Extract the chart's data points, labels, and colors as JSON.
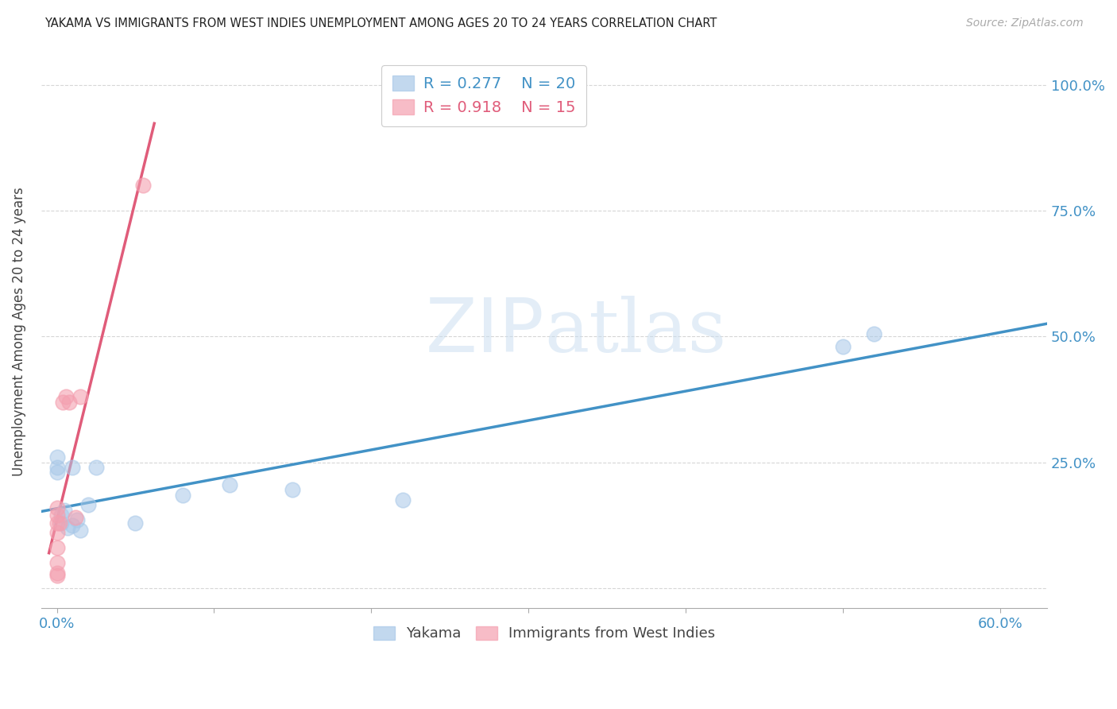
{
  "title": "YAKAMA VS IMMIGRANTS FROM WEST INDIES UNEMPLOYMENT AMONG AGES 20 TO 24 YEARS CORRELATION CHART",
  "source": "Source: ZipAtlas.com",
  "ylabel_label": "Unemployment Among Ages 20 to 24 years",
  "background_color": "#ffffff",
  "watermark_zip": "ZIP",
  "watermark_atlas": "atlas",
  "legend_label1": "Yakama",
  "legend_label2": "Immigrants from West Indies",
  "R1": 0.277,
  "N1": 20,
  "R2": 0.918,
  "N2": 15,
  "color_blue": "#a8c8e8",
  "color_pink": "#f4a0b0",
  "line_color_blue": "#4292c6",
  "line_color_pink": "#e05c7a",
  "tick_color": "#4292c6",
  "xlim": [
    -0.01,
    0.63
  ],
  "ylim": [
    -0.04,
    1.06
  ],
  "x_ticks": [
    0.0,
    0.1,
    0.2,
    0.3,
    0.4,
    0.5,
    0.6
  ],
  "x_tick_labels": [
    "0.0%",
    "",
    "",
    "",
    "",
    "",
    "60.0%"
  ],
  "y_ticks": [
    0.0,
    0.25,
    0.5,
    0.75,
    1.0
  ],
  "y_right_labels": [
    "",
    "25.0%",
    "50.0%",
    "75.0%",
    "100.0%"
  ],
  "yakama_x": [
    0.0,
    0.0,
    0.0,
    0.003,
    0.003,
    0.005,
    0.007,
    0.01,
    0.01,
    0.013,
    0.015,
    0.02,
    0.025,
    0.05,
    0.08,
    0.11,
    0.15,
    0.22,
    0.5,
    0.52
  ],
  "yakama_y": [
    0.23,
    0.24,
    0.26,
    0.13,
    0.145,
    0.155,
    0.12,
    0.125,
    0.24,
    0.135,
    0.115,
    0.165,
    0.24,
    0.13,
    0.185,
    0.205,
    0.195,
    0.175,
    0.48,
    0.505
  ],
  "westindies_x": [
    0.0,
    0.0,
    0.0,
    0.0,
    0.0,
    0.0,
    0.0,
    0.0,
    0.002,
    0.004,
    0.006,
    0.008,
    0.012,
    0.015,
    0.055
  ],
  "westindies_y": [
    0.03,
    0.05,
    0.08,
    0.11,
    0.13,
    0.145,
    0.16,
    0.025,
    0.13,
    0.37,
    0.38,
    0.37,
    0.14,
    0.38,
    0.8
  ]
}
